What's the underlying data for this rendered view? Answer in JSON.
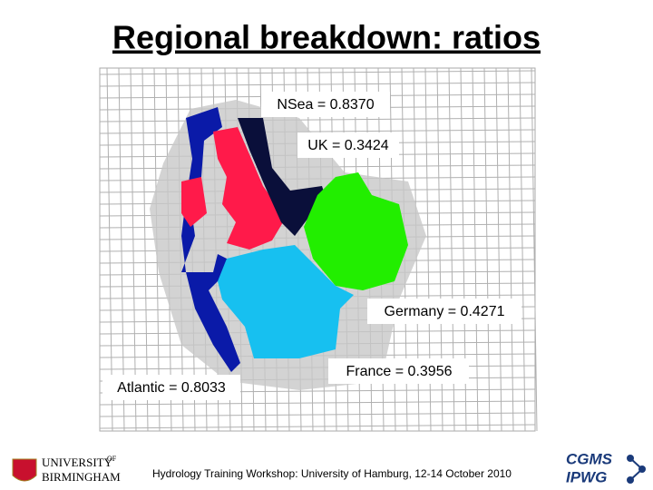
{
  "title": "Regional breakdown: ratios",
  "regions": [
    {
      "label": "NSea = 0.8370"
    },
    {
      "label": "UK = 0.3424"
    },
    {
      "label": "Germany = 0.4271"
    },
    {
      "label": "France = 0.3956"
    },
    {
      "label": "Atlantic = 0.8033"
    }
  ],
  "footer": "Hydrology Training Workshop: University of Hamburg, 12-14 October 2010",
  "logos": {
    "left": {
      "line1": "UNIVERSITY",
      "sup": "OF",
      "line2": "BIRMINGHAM"
    },
    "right": {
      "line1": "CGMS",
      "line2": "IPWG"
    }
  }
}
